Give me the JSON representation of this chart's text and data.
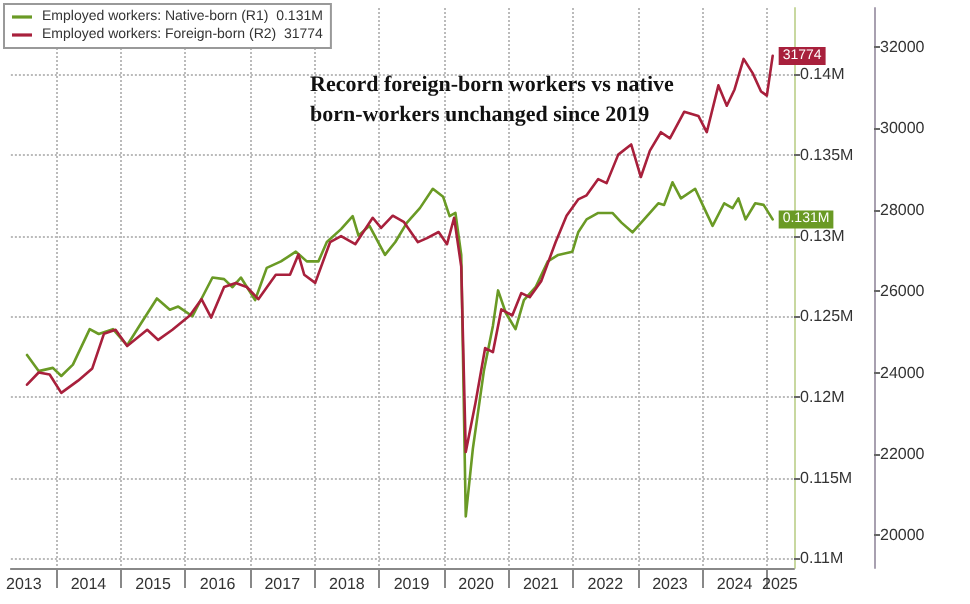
{
  "chart_data": {
    "type": "line",
    "title": "Record foreign-born workers vs native born-workers unchanged since 2019",
    "legend": "top left",
    "grid": true,
    "marker": "none",
    "line_style": "solid",
    "xlim": [
      2013.3,
      2025.42
    ],
    "xticks": [
      {
        "value": 2013.5,
        "label": "2013"
      },
      {
        "value": 2014,
        "label": null
      },
      {
        "value": 2014.5,
        "label": "2014"
      },
      {
        "value": 2015,
        "label": null
      },
      {
        "value": 2015.5,
        "label": "2015"
      },
      {
        "value": 2016,
        "label": null
      },
      {
        "value": 2016.5,
        "label": "2016"
      },
      {
        "value": 2017,
        "label": null
      },
      {
        "value": 2017.5,
        "label": "2017"
      },
      {
        "value": 2018,
        "label": null
      },
      {
        "value": 2018.5,
        "label": "2018"
      },
      {
        "value": 2019,
        "label": null
      },
      {
        "value": 2019.5,
        "label": "2019"
      },
      {
        "value": 2020,
        "label": null
      },
      {
        "value": 2020.5,
        "label": "2020"
      },
      {
        "value": 2021,
        "label": null
      },
      {
        "value": 2021.5,
        "label": "2021"
      },
      {
        "value": 2022,
        "label": null
      },
      {
        "value": 2022.5,
        "label": "2022"
      },
      {
        "value": 2023,
        "label": null
      },
      {
        "value": 2023.5,
        "label": "2023"
      },
      {
        "value": 2024,
        "label": null
      },
      {
        "value": 2024.5,
        "label": "2024"
      },
      {
        "value": 2025,
        "label": null
      },
      {
        "value": 2025.2,
        "label": "2025"
      }
    ],
    "ylim": [
      0.1094,
      0.1441
    ],
    "yticks": [
      {
        "value": 0.11,
        "label": "0.11M"
      },
      {
        "value": 0.115,
        "label": "0.115M"
      },
      {
        "value": 0.12,
        "label": "0.12M"
      },
      {
        "value": 0.125,
        "label": "0.125M"
      },
      {
        "value": 0.13,
        "label": "0.13M"
      },
      {
        "value": 0.135,
        "label": "0.135M"
      },
      {
        "value": 0.14,
        "label": "0.14M"
      }
    ],
    "y2lim": [
      19200,
      32950
    ],
    "y2ticks": [
      20000,
      22000,
      24000,
      26000,
      28000,
      30000,
      32000
    ],
    "series": [
      {
        "name": "Employed workers: Native-born (R1)  0.131M",
        "color": "#6a9a25",
        "axis": "y",
        "x": [
          2013.55,
          2013.73,
          2013.95,
          2014.08,
          2014.26,
          2014.52,
          2014.66,
          2014.88,
          2015.1,
          2015.32,
          2015.56,
          2015.76,
          2015.89,
          2016.11,
          2016.42,
          2016.6,
          2016.73,
          2016.86,
          2017.08,
          2017.26,
          2017.48,
          2017.71,
          2017.88,
          2018.06,
          2018.19,
          2018.41,
          2018.59,
          2018.68,
          2018.85,
          2019.09,
          2019.25,
          2019.43,
          2019.63,
          2019.83,
          2019.99,
          2020.09,
          2020.18,
          2020.27,
          2020.34,
          2020.45,
          2020.62,
          2020.76,
          2020.84,
          2020.96,
          2021.11,
          2021.24,
          2021.42,
          2021.61,
          2021.77,
          2021.99,
          2022.08,
          2022.21,
          2022.39,
          2022.61,
          2022.75,
          2022.92,
          2023.1,
          2023.32,
          2023.41,
          2023.54,
          2023.67,
          2023.89,
          2024.03,
          2024.16,
          2024.34,
          2024.47,
          2024.56,
          2024.67,
          2024.82,
          2024.95,
          2025.09
        ],
        "values": [
          0.1226,
          0.1216,
          0.1218,
          0.1213,
          0.122,
          0.1242,
          0.1239,
          0.1242,
          0.1232,
          0.1246,
          0.1261,
          0.1254,
          0.1256,
          0.125,
          0.1274,
          0.1273,
          0.1268,
          0.1274,
          0.126,
          0.128,
          0.1284,
          0.129,
          0.1284,
          0.1284,
          0.1296,
          0.1304,
          0.1312,
          0.13,
          0.1306,
          0.1288,
          0.1296,
          0.1308,
          0.1317,
          0.1329,
          0.1324,
          0.1312,
          0.1314,
          0.1288,
          0.1126,
          0.1168,
          0.1216,
          0.1244,
          0.1266,
          0.1252,
          0.1242,
          0.126,
          0.1268,
          0.1284,
          0.1288,
          0.129,
          0.1302,
          0.131,
          0.1314,
          0.1314,
          0.1308,
          0.1302,
          0.131,
          0.132,
          0.1319,
          0.1333,
          0.1323,
          0.1329,
          0.1317,
          0.1306,
          0.132,
          0.1317,
          0.1323,
          0.131,
          0.132,
          0.1319,
          0.131
        ],
        "value_labels": [
          null,
          null,
          null,
          null,
          null,
          null,
          null,
          null,
          null,
          null,
          null,
          null,
          null,
          null,
          null,
          null,
          null,
          null,
          null,
          null,
          null,
          null,
          null,
          null,
          null,
          null,
          null,
          null,
          null,
          null,
          null,
          null,
          null,
          null,
          null,
          null,
          null,
          null,
          null,
          null,
          null,
          null,
          null,
          null,
          null,
          null,
          null,
          null,
          null,
          null,
          null,
          null,
          null,
          null,
          null,
          null,
          null,
          null,
          null,
          null,
          null,
          null,
          null,
          null,
          null,
          null,
          null,
          null,
          null,
          null,
          "0.131M"
        ]
      },
      {
        "name": "Employed workers: Foreign-born (R2)  31774",
        "color": "#a8203c",
        "axis": "y2",
        "x": [
          2013.55,
          2013.73,
          2013.9,
          2014.08,
          2014.34,
          2014.56,
          2014.74,
          2014.92,
          2015.1,
          2015.41,
          2015.58,
          2015.8,
          2016.07,
          2016.25,
          2016.4,
          2016.6,
          2016.78,
          2016.95,
          2017.13,
          2017.4,
          2017.62,
          2017.75,
          2017.84,
          2018.01,
          2018.24,
          2018.41,
          2018.63,
          2018.9,
          2019.03,
          2019.21,
          2019.38,
          2019.6,
          2019.74,
          2019.92,
          2020.05,
          2020.16,
          2020.27,
          2020.34,
          2020.49,
          2020.64,
          2020.76,
          2020.89,
          2021.06,
          2021.2,
          2021.33,
          2021.51,
          2021.73,
          2021.9,
          2022.08,
          2022.21,
          2022.39,
          2022.52,
          2022.7,
          2022.9,
          2023.05,
          2023.19,
          2023.36,
          2023.5,
          2023.72,
          2023.94,
          2024.07,
          2024.25,
          2024.38,
          2024.5,
          2024.64,
          2024.78,
          2024.91,
          2025.0,
          2025.09
        ],
        "values": [
          23700,
          24000,
          23950,
          23500,
          23800,
          24100,
          24950,
          25050,
          24650,
          25050,
          24800,
          25050,
          25400,
          25800,
          25350,
          26100,
          26200,
          26100,
          25800,
          26400,
          26400,
          26900,
          26400,
          26200,
          27200,
          27350,
          27150,
          27800,
          27550,
          27850,
          27700,
          27200,
          27300,
          27450,
          27150,
          27800,
          26600,
          22050,
          23250,
          24600,
          24500,
          25550,
          25400,
          25950,
          25850,
          26250,
          27200,
          27850,
          28250,
          28350,
          28750,
          28650,
          29350,
          29600,
          28800,
          29450,
          29900,
          29750,
          30400,
          30300,
          29900,
          31050,
          30550,
          30950,
          31700,
          31350,
          30900,
          30800,
          31774
        ],
        "value_labels": [
          null,
          null,
          null,
          null,
          null,
          null,
          null,
          null,
          null,
          null,
          null,
          null,
          null,
          null,
          null,
          null,
          null,
          null,
          null,
          null,
          null,
          null,
          null,
          null,
          null,
          null,
          null,
          null,
          null,
          null,
          null,
          null,
          null,
          null,
          null,
          null,
          null,
          null,
          null,
          null,
          null,
          null,
          null,
          null,
          null,
          null,
          null,
          null,
          null,
          null,
          null,
          null,
          null,
          null,
          null,
          null,
          null,
          null,
          null,
          null,
          null,
          null,
          null,
          null,
          null,
          null,
          null,
          null,
          "31774"
        ]
      }
    ]
  }
}
